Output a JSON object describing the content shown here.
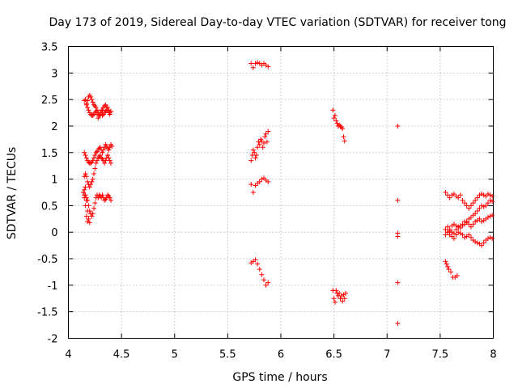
{
  "chart_data": {
    "type": "scatter",
    "title": "Day 173 of 2019, Sidereal Day-to-day VTEC variation (SDTVAR) for receiver tong",
    "xlabel": "GPS time / hours",
    "ylabel": "SDTVAR / TECUs",
    "xlim": [
      4,
      8
    ],
    "ylim": [
      -2,
      3.5
    ],
    "xticks": [
      4,
      4.5,
      5,
      5.5,
      6,
      6.5,
      7,
      7.5,
      8
    ],
    "xtick_labels": [
      "4",
      "4.5",
      "5",
      "5.5",
      "6",
      "6.5",
      "7",
      "7.5",
      "8"
    ],
    "yticks": [
      -2,
      -1.5,
      -1,
      -0.5,
      0,
      0.5,
      1,
      1.5,
      2,
      2.5,
      3,
      3.5
    ],
    "ytick_labels": [
      "-2",
      "-1.5",
      "-1",
      "-0.5",
      "0",
      "0.5",
      "1",
      "1.5",
      "2",
      "2.5",
      "3",
      "3.5"
    ],
    "grid": true,
    "marker": "+",
    "marker_color": "#ff0000",
    "series": [
      {
        "name": "SDTVAR",
        "x": [
          4.15,
          4.16,
          4.17,
          4.18,
          4.19,
          4.2,
          4.21,
          4.22,
          4.23,
          4.24,
          4.25,
          4.26,
          4.27,
          4.28,
          4.29,
          4.3,
          4.31,
          4.32,
          4.33,
          4.34,
          4.35,
          4.36,
          4.37,
          4.38,
          4.39,
          4.4,
          4.17,
          4.18,
          4.19,
          4.2,
          4.21,
          4.22,
          4.23,
          4.24,
          4.25,
          4.26,
          4.27,
          4.28,
          4.29,
          4.3,
          4.31,
          4.32,
          4.33,
          4.34,
          4.35,
          4.36,
          4.37,
          4.38,
          4.39,
          4.4,
          4.15,
          4.16,
          4.17,
          4.18,
          4.19,
          4.2,
          4.21,
          4.22,
          4.23,
          4.24,
          4.25,
          4.26,
          4.27,
          4.28,
          4.29,
          4.3,
          4.31,
          4.32,
          4.33,
          4.34,
          4.35,
          4.36,
          4.37,
          4.38,
          4.39,
          4.4,
          4.41,
          4.15,
          4.16,
          4.17,
          4.18,
          4.19,
          4.2,
          4.21,
          4.22,
          4.23,
          4.24,
          4.25,
          4.26,
          4.27,
          4.28,
          4.29,
          4.3,
          4.31,
          4.32,
          4.33,
          4.34,
          4.35,
          4.36,
          4.37,
          4.38,
          4.39,
          4.4,
          4.15,
          4.16,
          4.17,
          4.18,
          4.19,
          4.2,
          4.21,
          4.22,
          4.23,
          4.24,
          4.25,
          4.26,
          4.27,
          4.28,
          4.29,
          4.3,
          4.31,
          4.32,
          4.33,
          4.34,
          4.35,
          4.36,
          4.37,
          4.38,
          4.39,
          4.4,
          4.14,
          4.15,
          4.16,
          4.17,
          4.18,
          4.19,
          4.2,
          4.18,
          4.17,
          4.16,
          4.15,
          5.72,
          5.74,
          5.76,
          5.78,
          5.8,
          5.82,
          5.84,
          5.86,
          5.88,
          5.72,
          5.73,
          5.74,
          5.75,
          5.76,
          5.77,
          5.78,
          5.79,
          5.8,
          5.81,
          5.82,
          5.83,
          5.84,
          5.85,
          5.86,
          5.87,
          5.88,
          5.72,
          5.74,
          5.76,
          5.78,
          5.8,
          5.82,
          5.84,
          5.86,
          5.88,
          5.72,
          5.74,
          5.76,
          5.78,
          5.8,
          5.82,
          5.84,
          5.86,
          5.88,
          6.49,
          6.5,
          6.51,
          6.52,
          6.53,
          6.54,
          6.55,
          6.56,
          6.57,
          6.58,
          6.59,
          6.6,
          6.49,
          6.5,
          6.51,
          6.52,
          6.53,
          6.54,
          6.55,
          6.56,
          6.57,
          6.58,
          6.59,
          6.6,
          6.61,
          7.1,
          7.1,
          7.1,
          7.1,
          7.1,
          7.1,
          7.55,
          7.57,
          7.59,
          7.61,
          7.63,
          7.65,
          7.67,
          7.69,
          7.71,
          7.73,
          7.75,
          7.77,
          7.79,
          7.81,
          7.83,
          7.85,
          7.87,
          7.89,
          7.91,
          7.93,
          7.95,
          7.97,
          7.99,
          7.55,
          7.57,
          7.59,
          7.61,
          7.63,
          7.65,
          7.67,
          7.69,
          7.71,
          7.73,
          7.75,
          7.77,
          7.79,
          7.81,
          7.83,
          7.85,
          7.87,
          7.89,
          7.91,
          7.93,
          7.95,
          7.97,
          7.99,
          7.55,
          7.57,
          7.59,
          7.61,
          7.63,
          7.65,
          7.67,
          7.69,
          7.71,
          7.73,
          7.75,
          7.77,
          7.79,
          7.81,
          7.83,
          7.85,
          7.87,
          7.89,
          7.91,
          7.93,
          7.95,
          7.97,
          7.99,
          7.55,
          7.57,
          7.59,
          7.61,
          7.63,
          7.65,
          7.67,
          7.69,
          7.71,
          7.73,
          7.75,
          7.77,
          7.79,
          7.81,
          7.83,
          7.85,
          7.87,
          7.89,
          7.91,
          7.93,
          7.95,
          7.97,
          7.99,
          7.55,
          7.56,
          7.57,
          7.58,
          7.6,
          7.62,
          7.64,
          7.66
        ],
        "y": [
          2.48,
          2.5,
          2.4,
          2.35,
          2.3,
          2.25,
          2.22,
          2.2,
          2.2,
          2.22,
          2.25,
          2.28,
          2.22,
          2.15,
          2.2,
          2.25,
          2.3,
          2.2,
          2.22,
          2.25,
          2.28,
          2.3,
          2.35,
          2.3,
          2.25,
          2.28,
          2.42,
          2.48,
          2.55,
          2.58,
          2.55,
          2.5,
          2.45,
          2.4,
          2.38,
          2.35,
          2.3,
          2.25,
          2.22,
          2.2,
          2.25,
          2.3,
          2.35,
          2.38,
          2.4,
          2.35,
          2.3,
          2.25,
          2.22,
          2.28,
          1.5,
          1.45,
          1.4,
          1.35,
          1.32,
          1.3,
          1.3,
          1.32,
          1.35,
          1.4,
          1.45,
          1.5,
          1.52,
          1.55,
          1.58,
          1.6,
          1.55,
          1.5,
          1.55,
          1.6,
          1.65,
          1.62,
          1.58,
          1.55,
          1.6,
          1.65,
          1.62,
          1.05,
          1.1,
          1.05,
          0.95,
          0.9,
          0.85,
          0.9,
          0.95,
          1.0,
          1.1,
          1.2,
          1.3,
          1.35,
          1.4,
          1.42,
          1.45,
          1.4,
          1.38,
          1.35,
          1.3,
          1.35,
          1.4,
          1.45,
          1.4,
          1.35,
          1.3,
          0.65,
          0.7,
          0.65,
          0.6,
          0.5,
          0.4,
          0.35,
          0.3,
          0.35,
          0.45,
          0.55,
          0.65,
          0.7,
          0.65,
          0.7,
          0.68,
          0.65,
          0.7,
          0.65,
          0.6,
          0.62,
          0.65,
          0.7,
          0.68,
          0.65,
          0.6,
          0.75,
          0.8,
          0.85,
          0.6,
          0.4,
          0.25,
          0.18,
          0.2,
          0.3,
          0.5,
          0.7,
          0.9,
          0.75,
          0.88,
          0.92,
          0.95,
          1.0,
          1.02,
          0.98,
          0.95,
          1.35,
          1.45,
          1.55,
          1.5,
          1.4,
          1.45,
          1.6,
          1.7,
          1.65,
          1.75,
          1.72,
          1.6,
          1.68,
          1.8,
          1.85,
          1.7,
          1.9,
          3.18,
          3.1,
          3.18,
          3.2,
          3.18,
          3.15,
          3.18,
          3.15,
          3.12,
          -0.58,
          -0.55,
          -0.52,
          -0.6,
          -0.7,
          -0.8,
          -0.9,
          -1.0,
          -0.95,
          2.3,
          2.15,
          2.2,
          2.1,
          2.05,
          2.0,
          2.02,
          2.0,
          1.98,
          1.95,
          1.8,
          1.72,
          -1.1,
          -1.25,
          -1.32,
          -1.1,
          -1.15,
          -1.2,
          -1.15,
          -1.25,
          -1.2,
          -1.3,
          -1.18,
          -1.25,
          -1.15,
          2.0,
          0.6,
          -0.02,
          -0.08,
          -0.95,
          -1.72,
          0.75,
          0.7,
          0.65,
          0.7,
          0.72,
          0.68,
          0.65,
          0.7,
          0.6,
          0.55,
          0.5,
          0.45,
          0.5,
          0.55,
          0.6,
          0.65,
          0.7,
          0.72,
          0.7,
          0.68,
          0.72,
          0.7,
          0.68,
          0.05,
          0.1,
          0.05,
          0.12,
          0.15,
          0.12,
          0.1,
          0.08,
          0.12,
          0.15,
          0.2,
          0.25,
          0.28,
          0.32,
          0.35,
          0.4,
          0.45,
          0.5,
          0.48,
          0.5,
          0.55,
          0.6,
          0.58,
          -0.05,
          0.0,
          0.02,
          0.0,
          -0.02,
          0.05,
          0.1,
          0.12,
          0.15,
          0.2,
          0.18,
          0.15,
          0.1,
          0.15,
          0.2,
          0.22,
          0.25,
          0.2,
          0.22,
          0.25,
          0.28,
          0.3,
          0.32,
          0.05,
          0.0,
          -0.05,
          -0.08,
          -0.12,
          -0.05,
          0.0,
          -0.02,
          -0.05,
          -0.1,
          -0.08,
          -0.05,
          -0.1,
          -0.15,
          -0.18,
          -0.2,
          -0.22,
          -0.25,
          -0.2,
          -0.15,
          -0.12,
          -0.1,
          -0.12,
          -0.55,
          -0.6,
          -0.65,
          -0.7,
          -0.75,
          -0.85,
          -0.85,
          -0.82
        ]
      }
    ]
  }
}
